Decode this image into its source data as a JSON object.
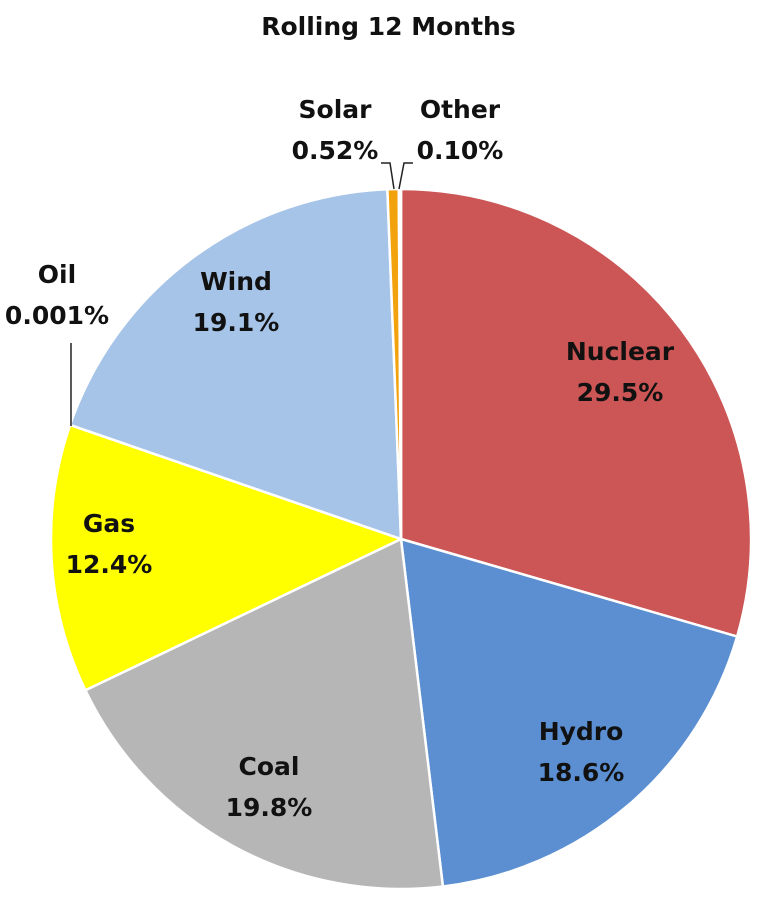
{
  "chart_data": {
    "type": "pie",
    "title": "Rolling 12 Months",
    "slices": [
      {
        "name": "Nuclear",
        "value": 29.5,
        "label": "29.5%",
        "color": "#cc5555"
      },
      {
        "name": "Hydro",
        "value": 18.6,
        "label": "18.6%",
        "color": "#5b8fd1"
      },
      {
        "name": "Coal",
        "value": 19.8,
        "label": "19.8%",
        "color": "#b6b6b6"
      },
      {
        "name": "Gas",
        "value": 12.4,
        "label": "12.4%",
        "color": "#ffff00"
      },
      {
        "name": "Oil",
        "value": 0.001,
        "label": "0.001%",
        "color": "#222222"
      },
      {
        "name": "Wind",
        "value": 19.1,
        "label": "19.1%",
        "color": "#a6c4e8"
      },
      {
        "name": "Solar",
        "value": 0.52,
        "label": "0.52%",
        "color": "#f2a20c"
      },
      {
        "name": "Other",
        "value": 0.1,
        "label": "0.10%",
        "color": "#c0c0c0"
      }
    ]
  }
}
